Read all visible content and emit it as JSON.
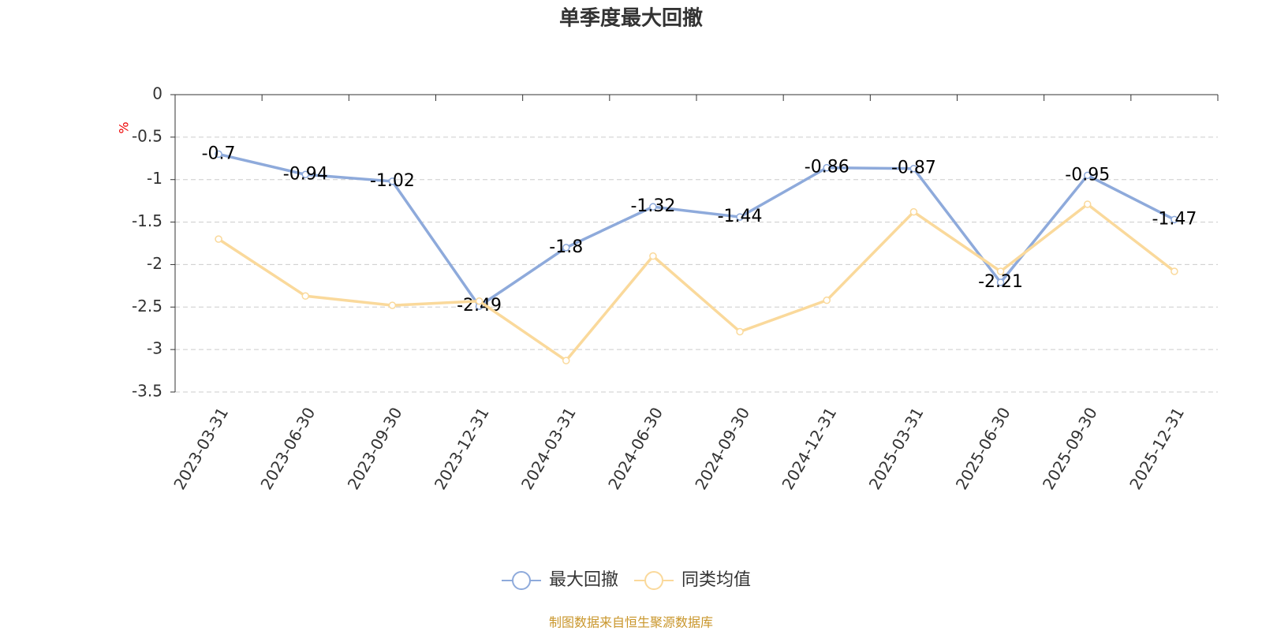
{
  "chart_data": {
    "type": "line",
    "title": "单季度最大回撤",
    "y_label": "%",
    "source": "制图数据来自恒生聚源数据库",
    "categories": [
      "2023-03-31",
      "2023-06-30",
      "2023-09-30",
      "2023-12-31",
      "2024-03-31",
      "2024-06-30",
      "2024-09-30",
      "2024-12-31",
      "2025-03-31",
      "2025-06-30",
      "2025-09-30",
      "2025-12-31"
    ],
    "series": [
      {
        "name": "最大回撤",
        "color": "#8eaadb",
        "values": [
          -0.7,
          -0.94,
          -1.02,
          -2.49,
          -1.8,
          -1.32,
          -1.44,
          -0.86,
          -0.87,
          -2.21,
          -0.95,
          -1.47
        ]
      },
      {
        "name": "同类均值",
        "color": "#fad99b",
        "values": [
          -1.7,
          -2.37,
          -2.48,
          -2.43,
          -3.13,
          -1.9,
          -2.79,
          -2.42,
          -1.38,
          -2.08,
          -1.29,
          -2.08
        ]
      }
    ],
    "ylim": [
      -3.5,
      0
    ],
    "yticks": [
      0,
      -0.5,
      -1,
      -1.5,
      -2,
      -2.5,
      -3,
      -3.5
    ],
    "grid": true,
    "legend": "bottom"
  }
}
